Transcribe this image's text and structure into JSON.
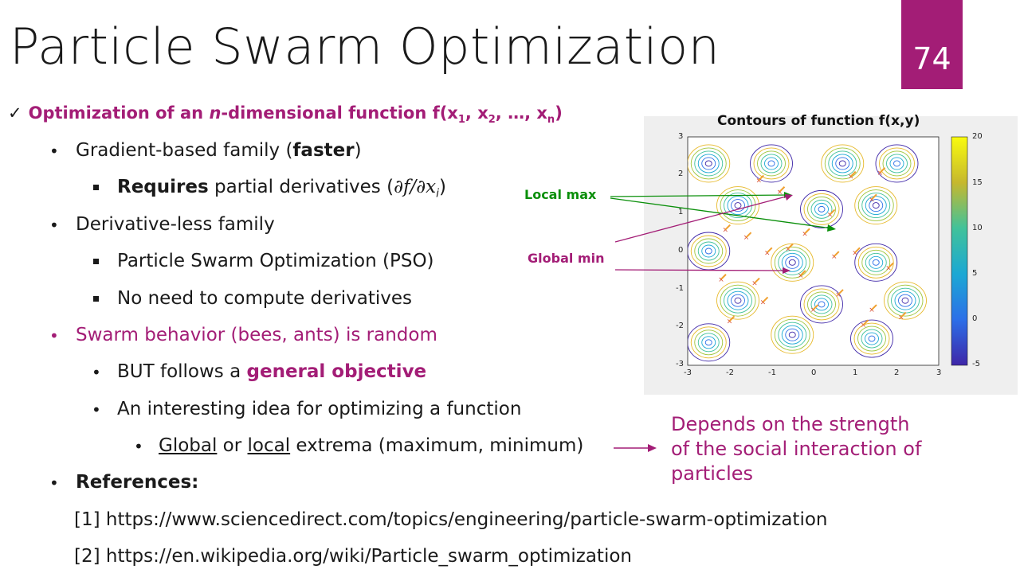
{
  "slide": {
    "title": "Particle Swarm Optimization",
    "number": "74",
    "colors": {
      "accent": "#a31d76",
      "green": "#0a8f0a"
    }
  },
  "content": {
    "heading": {
      "check_icon": "checkmark-icon",
      "text_pre": "Optimization of an ",
      "n": "n",
      "text_mid": "-dimensional function f(x",
      "sub1": "1",
      "sep1": ", x",
      "sub2": "2",
      "sep2": ", …, x",
      "subn": "n",
      "close": ")"
    },
    "gradient_line": {
      "pre": "Gradient-based family (",
      "bold": "faster",
      "post": ")"
    },
    "requires_line": {
      "bold": "Requires",
      "post": " partial derivatives (",
      "math": "∂f/∂x",
      "math_sub": "i",
      "close": ")"
    },
    "derivless_line": "Derivative-less family",
    "pso_line": "Particle Swarm Optimization (PSO)",
    "noneed_line": "No need to compute derivatives",
    "swarm_line": "Swarm behavior (bees, ants) is random",
    "but_line": {
      "pre": "BUT follows a ",
      "bold": "general objective"
    },
    "idea_line": "An interesting idea for optimizing a function",
    "extrema_line": {
      "u1": "Global",
      "mid": " or ",
      "u2": "local",
      "post": " extrema (maximum, minimum)"
    },
    "references_label": "References:",
    "ref1": "[1] https://www.sciencedirect.com/topics/engineering/particle-swarm-optimization",
    "ref2": "[2] https://en.wikipedia.org/wiki/Particle_swarm_optimization",
    "depends_lines": [
      "Depends on the strength",
      "of the social interaction of",
      "particles"
    ]
  },
  "plot": {
    "title": "Contours of function f(x,y)",
    "local_max_label": "Local max",
    "global_min_label": "Global min",
    "x_ticks": [
      "-3",
      "-2",
      "-1",
      "0",
      "1",
      "2",
      "3"
    ],
    "y_ticks": [
      "3",
      "2",
      "1",
      "0",
      "-1",
      "-2",
      "-3"
    ],
    "colorbar_ticks": [
      "20",
      "15",
      "10",
      "5",
      "0",
      "-5"
    ],
    "colorbar_range": [
      -5,
      20
    ]
  }
}
